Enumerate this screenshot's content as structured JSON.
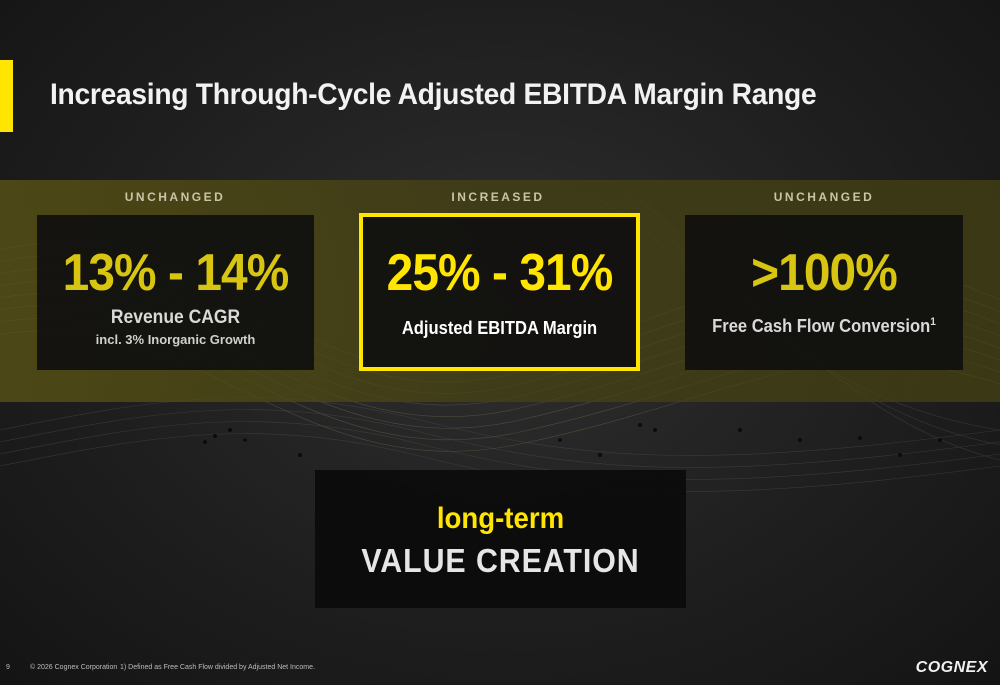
{
  "title": "Increasing Through-Cycle Adjusted EBITDA Margin Range",
  "cards": [
    {
      "label": "UNCHANGED",
      "value": "13% - 14%",
      "line1": "Revenue CAGR",
      "line2": "incl. 3% Inorganic Growth"
    },
    {
      "label": "INCREASED",
      "value": "25% - 31%",
      "line1": "Adjusted EBITDA Margin"
    },
    {
      "label": "UNCHANGED",
      "value": ">100%",
      "line1": "Free Cash Flow Conversion",
      "footnote_mark": "1"
    }
  ],
  "value_box": {
    "line1": "long-term",
    "line2": "VALUE CREATION"
  },
  "footer": {
    "page_number": "9",
    "copyright": "© 2026 Cognex Corporation",
    "footnote": "1) Defined as Free Cash Flow divided by Adjusted Net Income."
  },
  "logo_text": "COGNEX",
  "colors": {
    "accent": "#ffe500",
    "background": "#1f1f1f"
  }
}
